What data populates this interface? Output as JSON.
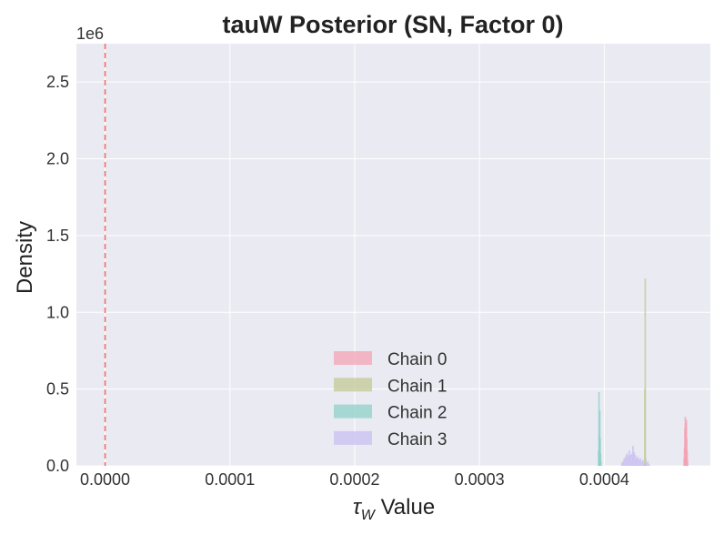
{
  "chart_data": {
    "type": "histogram",
    "title": "tauW Posterior (SN, Factor 0)",
    "xlabel_symbol": "τ",
    "xlabel_subscript": "W",
    "xlabel_rest": " Value",
    "ylabel": "Density",
    "y_offset_text": "1e6",
    "xlim": [
      -2.3e-05,
      0.000485
    ],
    "ylim": [
      0,
      2.75
    ],
    "x_ticks": [
      0.0,
      0.0001,
      0.0002,
      0.0003,
      0.0004
    ],
    "x_tick_labels": [
      "0.0000",
      "0.0001",
      "0.0002",
      "0.0003",
      "0.0004"
    ],
    "y_ticks": [
      0.0,
      0.5,
      1.0,
      1.5,
      2.0,
      2.5
    ],
    "y_tick_labels": [
      "0.0",
      "0.5",
      "1.0",
      "1.5",
      "2.0",
      "2.5"
    ],
    "grid": true,
    "legend_position": "lower-center",
    "reference_line": {
      "x": 0.0,
      "color": "#f07070",
      "style": "dashed"
    },
    "series": [
      {
        "name": "Chain 0",
        "color": "#f4a3b4",
        "bins": [
          {
            "x": 0.000464,
            "y": 0.05
          },
          {
            "x": 0.0004643,
            "y": 0.12
          },
          {
            "x": 0.0004646,
            "y": 0.25
          },
          {
            "x": 0.0004649,
            "y": 0.32
          },
          {
            "x": 0.0004652,
            "y": 0.22
          },
          {
            "x": 0.0004655,
            "y": 0.28
          },
          {
            "x": 0.0004658,
            "y": 0.3
          },
          {
            "x": 0.0004661,
            "y": 0.18
          },
          {
            "x": 0.0004664,
            "y": 0.1
          },
          {
            "x": 0.0004667,
            "y": 0.04
          }
        ]
      },
      {
        "name": "Chain 1",
        "color": "#c3c995",
        "bins": [
          {
            "x": 0.0004322,
            "y": 0.02
          },
          {
            "x": 0.0004325,
            "y": 0.5
          },
          {
            "x": 0.0004328,
            "y": 1.22
          },
          {
            "x": 0.0004331,
            "y": 0.05
          }
        ]
      },
      {
        "name": "Chain 2",
        "color": "#8fd0c8",
        "bins": [
          {
            "x": 0.0003955,
            "y": 0.1
          },
          {
            "x": 0.0003958,
            "y": 0.48
          },
          {
            "x": 0.0003961,
            "y": 0.2
          },
          {
            "x": 0.0003964,
            "y": 0.36
          },
          {
            "x": 0.0003967,
            "y": 0.18
          },
          {
            "x": 0.000397,
            "y": 0.08
          },
          {
            "x": 0.0003973,
            "y": 0.03
          }
        ]
      },
      {
        "name": "Chain 3",
        "color": "#c8bff0",
        "bins": [
          {
            "x": 0.000414,
            "y": 0.02
          },
          {
            "x": 0.000415,
            "y": 0.03
          },
          {
            "x": 0.000416,
            "y": 0.05
          },
          {
            "x": 0.000417,
            "y": 0.06
          },
          {
            "x": 0.000418,
            "y": 0.08
          },
          {
            "x": 0.000419,
            "y": 0.07
          },
          {
            "x": 0.00042,
            "y": 0.1
          },
          {
            "x": 0.000421,
            "y": 0.07
          },
          {
            "x": 0.000422,
            "y": 0.08
          },
          {
            "x": 0.000423,
            "y": 0.13
          },
          {
            "x": 0.000424,
            "y": 0.09
          },
          {
            "x": 0.000425,
            "y": 0.07
          },
          {
            "x": 0.000426,
            "y": 0.05
          },
          {
            "x": 0.000427,
            "y": 0.06
          },
          {
            "x": 0.000428,
            "y": 0.04
          },
          {
            "x": 0.000429,
            "y": 0.05
          },
          {
            "x": 0.00043,
            "y": 0.03
          },
          {
            "x": 0.000431,
            "y": 0.04
          },
          {
            "x": 0.000432,
            "y": 0.02
          },
          {
            "x": 0.000434,
            "y": 0.02
          },
          {
            "x": 0.000435,
            "y": 0.03
          },
          {
            "x": 0.000436,
            "y": 0.01
          }
        ]
      }
    ]
  }
}
